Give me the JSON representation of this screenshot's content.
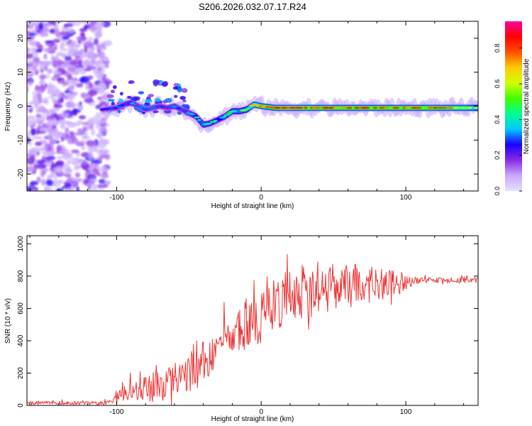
{
  "title": "S206.2026.032.07.17.R24",
  "chart_data": [
    {
      "type": "heatmap",
      "xlabel": "Height of straight line (km)",
      "ylabel": "Frequency (Hz)",
      "xlim": [
        -162,
        150
      ],
      "ylim": [
        -25,
        25
      ],
      "xticks": [
        -100,
        0,
        100
      ],
      "yticks": [
        -20,
        -10,
        0,
        10,
        20
      ],
      "xtick_labels": [
        "-100",
        "0",
        "100"
      ],
      "ytick_labels": [
        "-20",
        "-10",
        "0",
        "10",
        "20"
      ],
      "ridge": {
        "x": [
          -110,
          -100,
          -95,
          -90,
          -85,
          -80,
          -75,
          -70,
          -65,
          -60,
          -55,
          -50,
          -45,
          -40,
          -35,
          -30,
          -25,
          -20,
          -15,
          -10,
          -5,
          0,
          10,
          20,
          40,
          60,
          80,
          100,
          120,
          150
        ],
        "freq": [
          -1,
          -0.5,
          0.5,
          1,
          0,
          -1,
          -0.5,
          0,
          -0.5,
          0,
          -1,
          -2,
          -3,
          -5.5,
          -5,
          -4,
          -3,
          -1.5,
          -1.5,
          -1,
          0.5,
          0,
          -0.5,
          -0.5,
          -0.5,
          -0.5,
          -0.5,
          -0.5,
          -0.5,
          -0.5
        ],
        "amplitude": [
          0.25,
          0.3,
          0.3,
          0.35,
          0.3,
          0.3,
          0.3,
          0.3,
          0.3,
          0.35,
          0.3,
          0.35,
          0.4,
          0.5,
          0.45,
          0.4,
          0.45,
          0.5,
          0.5,
          0.55,
          0.7,
          0.8,
          0.85,
          0.9,
          0.85,
          0.85,
          0.85,
          0.85,
          0.85,
          0.6
        ]
      },
      "noise_region": {
        "x": [
          -162,
          -110
        ],
        "amplitude_range": [
          0.05,
          0.2
        ]
      }
    },
    {
      "type": "colorbar",
      "label": "Normalized spectral amplitude",
      "range": [
        0,
        0.95
      ],
      "ticks": [
        0,
        0.2,
        0.4,
        0.6,
        0.8
      ],
      "tick_labels": [
        "0.0",
        "0.2",
        "0.4",
        "0.6",
        "0.8"
      ],
      "colormap": [
        "#e8e0ff",
        "#c8a8ff",
        "#8a2be2",
        "#1a00ff",
        "#00c8ff",
        "#00ff90",
        "#40ff00",
        "#d0ff00",
        "#ffcc00",
        "#ff5000",
        "#ff0000",
        "#ff00a0"
      ]
    },
    {
      "type": "line",
      "xlabel": "Height of straight line (km)",
      "ylabel": "SNR (10 * v/v)",
      "xlim": [
        -162,
        150
      ],
      "ylim": [
        0,
        1050
      ],
      "xticks": [
        -100,
        0,
        100
      ],
      "yticks": [
        0,
        200,
        400,
        600,
        800,
        1000
      ],
      "xtick_labels": [
        "-100",
        "0",
        "100"
      ],
      "ytick_labels": [
        "0",
        "200",
        "400",
        "600",
        "800",
        "1000"
      ],
      "series": [
        {
          "name": "SNR",
          "color": "#ee3333",
          "envelope": {
            "x": [
              -162,
              -125,
              -110,
              -104,
              -100,
              -95,
              -90,
              -85,
              -80,
              -75,
              -70,
              -65,
              -60,
              -55,
              -50,
              -45,
              -40,
              -35,
              -30,
              -25,
              -20,
              -15,
              -10,
              -5,
              0,
              5,
              10,
              15,
              20,
              25,
              30,
              35,
              40,
              50,
              60,
              70,
              80,
              90,
              100,
              105,
              110,
              120,
              130,
              140,
              150
            ],
            "base": [
              12,
              12,
              12,
              15,
              50,
              60,
              70,
              80,
              90,
              90,
              110,
              120,
              130,
              150,
              170,
              200,
              230,
              260,
              300,
              340,
              380,
              410,
              440,
              470,
              500,
              540,
              570,
              600,
              630,
              650,
              660,
              670,
              680,
              690,
              700,
              710,
              720,
              730,
              740,
              760,
              770,
              770,
              770,
              770,
              770
            ],
            "amp": [
              15,
              15,
              15,
              20,
              40,
              60,
              90,
              110,
              140,
              140,
              140,
              130,
              140,
              160,
              180,
              200,
              190,
              180,
              200,
              200,
              200,
              200,
              210,
              220,
              230,
              240,
              240,
              240,
              250,
              250,
              260,
              250,
              240,
              230,
              200,
              170,
              150,
              120,
              80,
              40,
              25,
              25,
              25,
              25,
              25
            ]
          }
        }
      ]
    }
  ]
}
